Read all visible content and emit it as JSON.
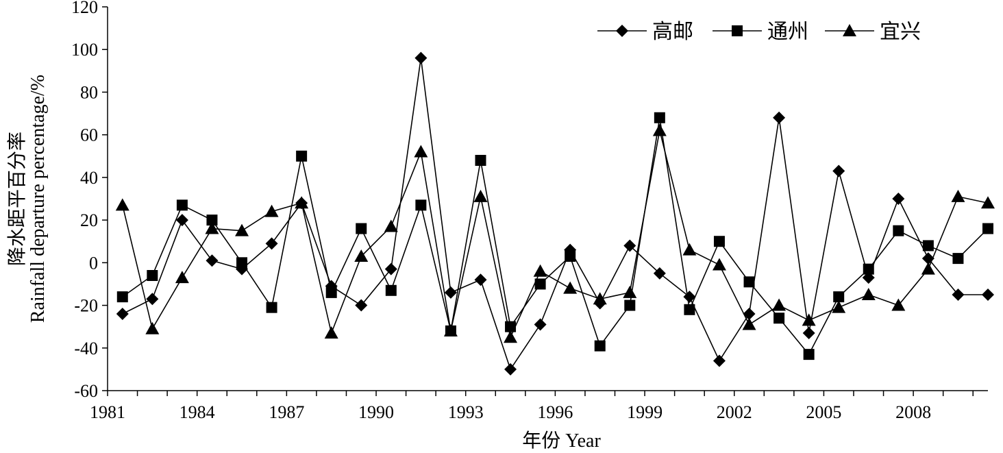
{
  "chart_data": {
    "type": "line",
    "title": "",
    "xlabel": "年份 Year",
    "ylabel_cn": "降水距平百分率",
    "ylabel_en": "Rainfall departure percentage/%",
    "ylim": [
      -60,
      120
    ],
    "yticks": [
      "-60",
      "-40",
      "-20",
      "0",
      "20",
      "40",
      "60",
      "80",
      "100",
      "120"
    ],
    "xlim": [
      1981,
      2010
    ],
    "xticks": [
      "1981",
      "1984",
      "1987",
      "1990",
      "1993",
      "1996",
      "1999",
      "2002",
      "2005",
      "2008"
    ],
    "grid": false,
    "legend_position": "top-right",
    "x": [
      1981,
      1982,
      1983,
      1984,
      1985,
      1986,
      1987,
      1988,
      1989,
      1990,
      1991,
      1992,
      1993,
      1994,
      1995,
      1996,
      1997,
      1998,
      1999,
      2000,
      2001,
      2002,
      2003,
      2004,
      2005,
      2006,
      2007,
      2008,
      2009,
      2010
    ],
    "series": [
      {
        "name": "高邮",
        "marker": "diamond",
        "values": [
          -24,
          -17,
          20,
          1,
          -3,
          9,
          28,
          -11,
          -20,
          -3,
          96,
          -14,
          -8,
          -50,
          -29,
          6,
          -19,
          8,
          -5,
          -16,
          -46,
          -24,
          68,
          -33,
          43,
          -7,
          30,
          2,
          -15,
          -15
        ]
      },
      {
        "name": "通州",
        "marker": "square",
        "values": [
          -16,
          -6,
          27,
          20,
          0,
          -21,
          50,
          -14,
          16,
          -13,
          27,
          -32,
          48,
          -30,
          -10,
          3,
          -39,
          -20,
          68,
          -22,
          10,
          -9,
          -26,
          -43,
          -16,
          -3,
          15,
          8,
          2,
          16
        ]
      },
      {
        "name": "宜兴",
        "marker": "triangle",
        "values": [
          27,
          -31,
          -7,
          16,
          15,
          24,
          28,
          -33,
          3,
          17,
          52,
          -32,
          31,
          -35,
          -4,
          -12,
          -17,
          -14,
          62,
          6,
          -1,
          -29,
          -20,
          -27,
          -21,
          -15,
          -20,
          -3,
          31,
          28
        ]
      }
    ],
    "color": "#000000"
  }
}
